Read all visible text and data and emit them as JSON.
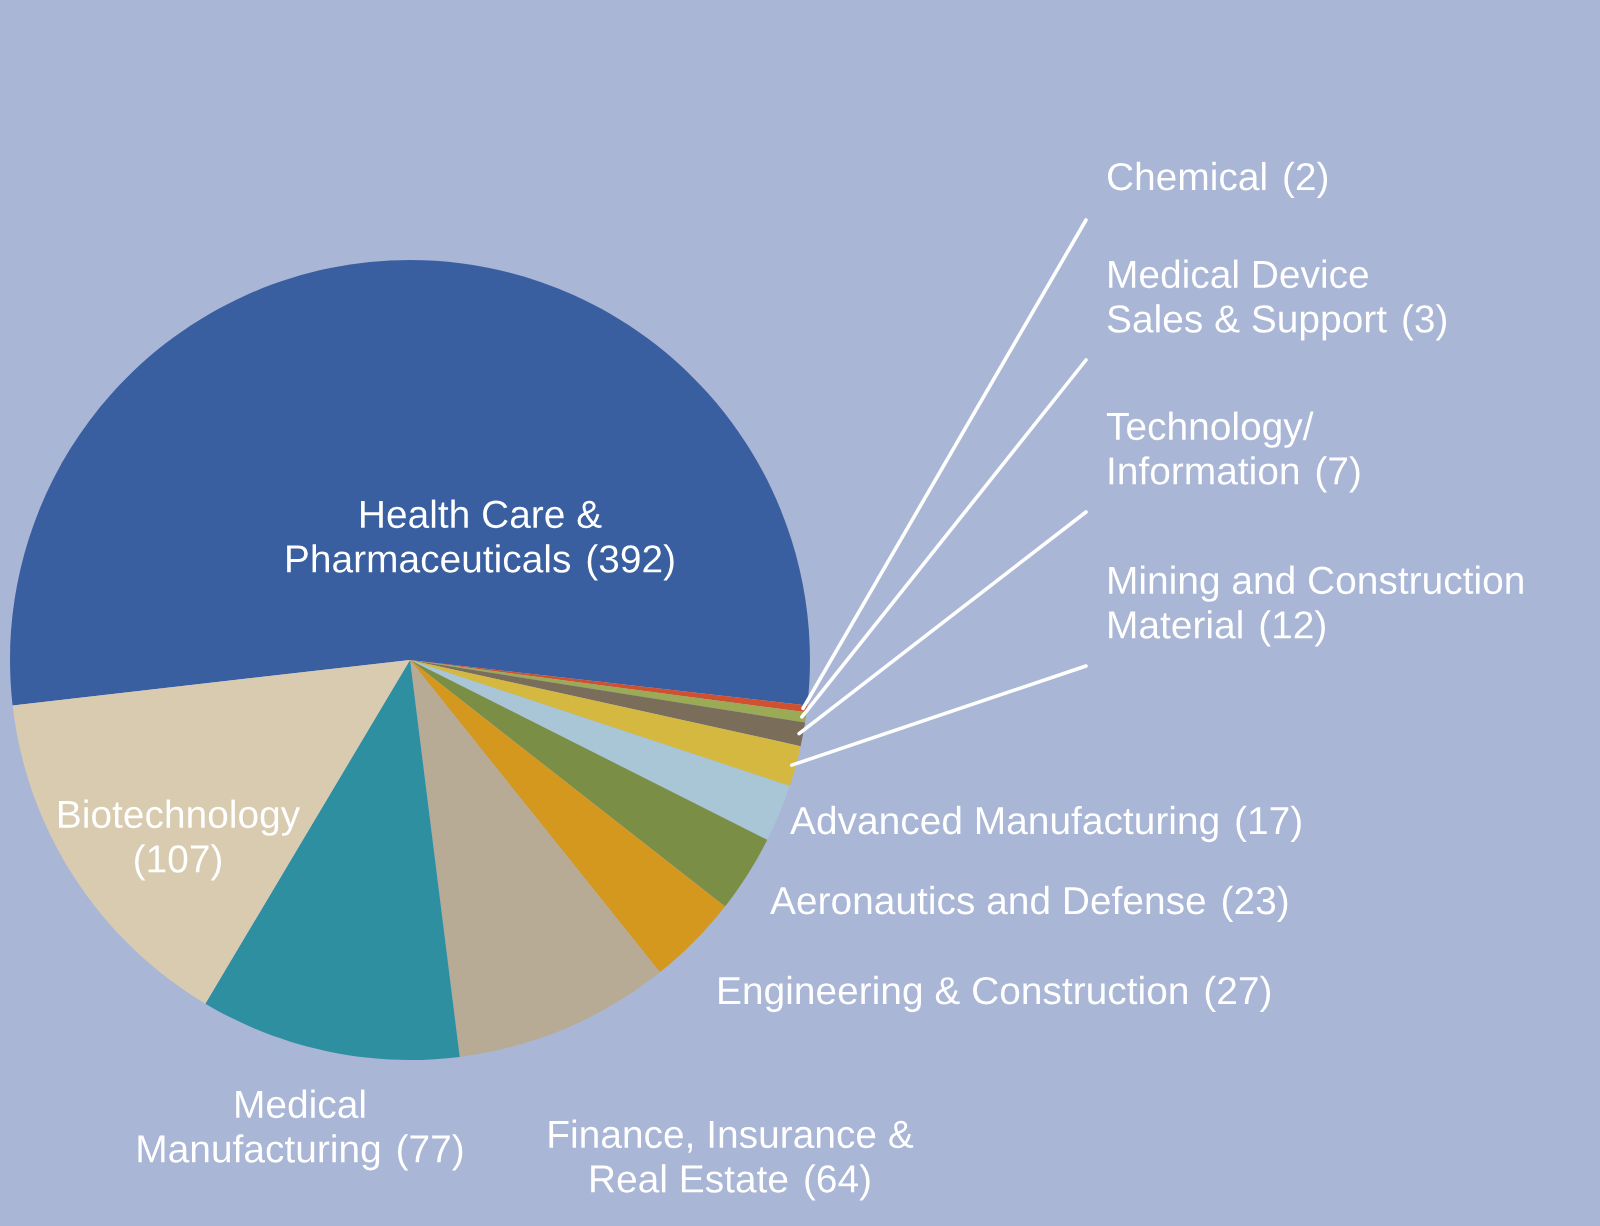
{
  "chart_data": {
    "type": "pie",
    "categories": [
      "Health Care &\nPharmaceuticals",
      "Chemical",
      "Medical Device\nSales & Support",
      "Technology/\nInformation",
      "Mining and Construction\nMaterial",
      "Advanced Manufacturing",
      "Aeronautics and Defense",
      "Engineering & Construction",
      "Finance, Insurance &\nReal Estate",
      "Medical\nManufacturing",
      "Biotechnology"
    ],
    "values": [
      392,
      2,
      3,
      7,
      12,
      17,
      23,
      27,
      64,
      77,
      107
    ],
    "value_labels": [
      "(392)",
      "(2)",
      "(3)",
      "(7)",
      "(12)",
      "(17)",
      "(23)",
      "(27)",
      "(64)",
      "(77)",
      "(107)"
    ],
    "colors": [
      "#3a5fa0",
      "#d05030",
      "#9aaa55",
      "#7a6e5a",
      "#d4b840",
      "#a9c6d6",
      "#7a8f45",
      "#d4981f",
      "#b8ab95",
      "#2e8fa0",
      "#d8cbb0"
    ]
  }
}
